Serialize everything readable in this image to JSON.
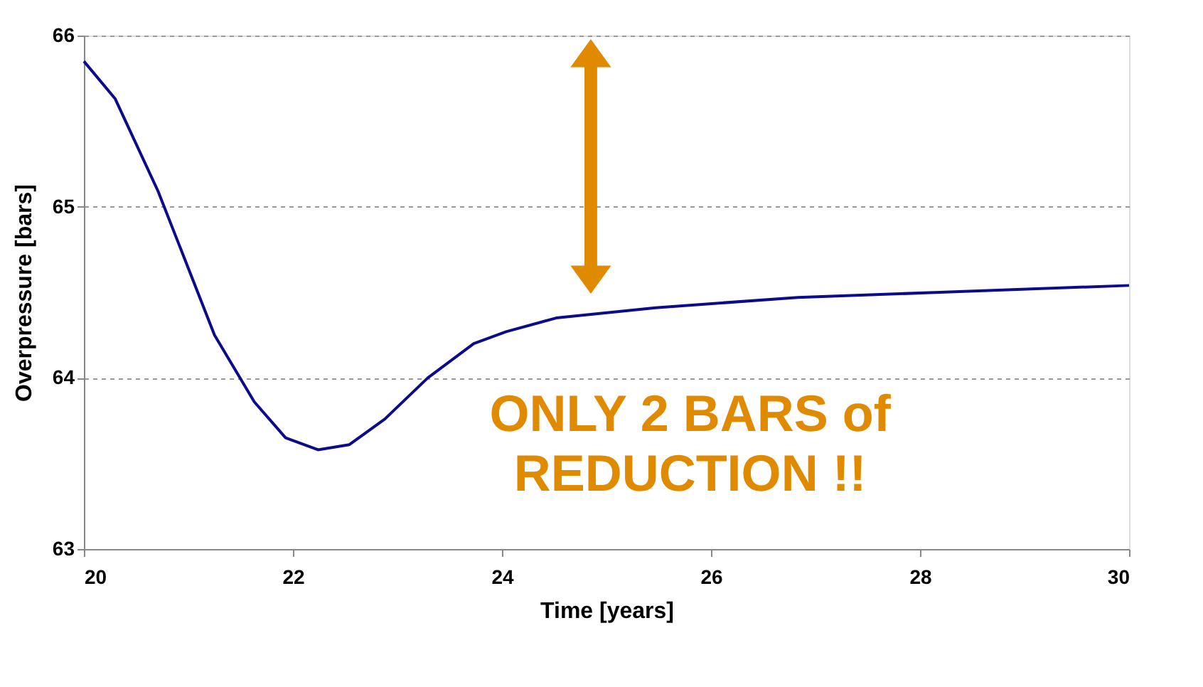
{
  "chart_data": {
    "type": "line",
    "xlabel": "Time [years]",
    "ylabel": "Overpressure [bars]",
    "x": [
      20,
      20.3,
      20.71,
      21.25,
      21.63,
      21.93,
      22.24,
      22.54,
      22.88,
      23.29,
      23.73,
      24.04,
      24.52,
      25.47,
      26.83,
      28.19,
      30
    ],
    "series": [
      {
        "color": "#0b0b8c",
        "values": [
          65.85,
          65.63,
          65.09,
          64.25,
          63.86,
          63.65,
          63.58,
          63.61,
          63.76,
          64.0,
          64.2,
          64.27,
          64.35,
          64.41,
          64.47,
          64.5,
          64.54
        ]
      }
    ],
    "xlim": [
      20,
      30
    ],
    "xticks": [
      20,
      22,
      24,
      26,
      28,
      30
    ],
    "ylim": [
      63,
      66
    ],
    "yticks": [
      63,
      64,
      65,
      66
    ],
    "grid": "y",
    "line_style": "solid",
    "marker": "none",
    "annotations": [
      "ONLY 2 BARS of\nREDUCTION !!"
    ]
  }
}
